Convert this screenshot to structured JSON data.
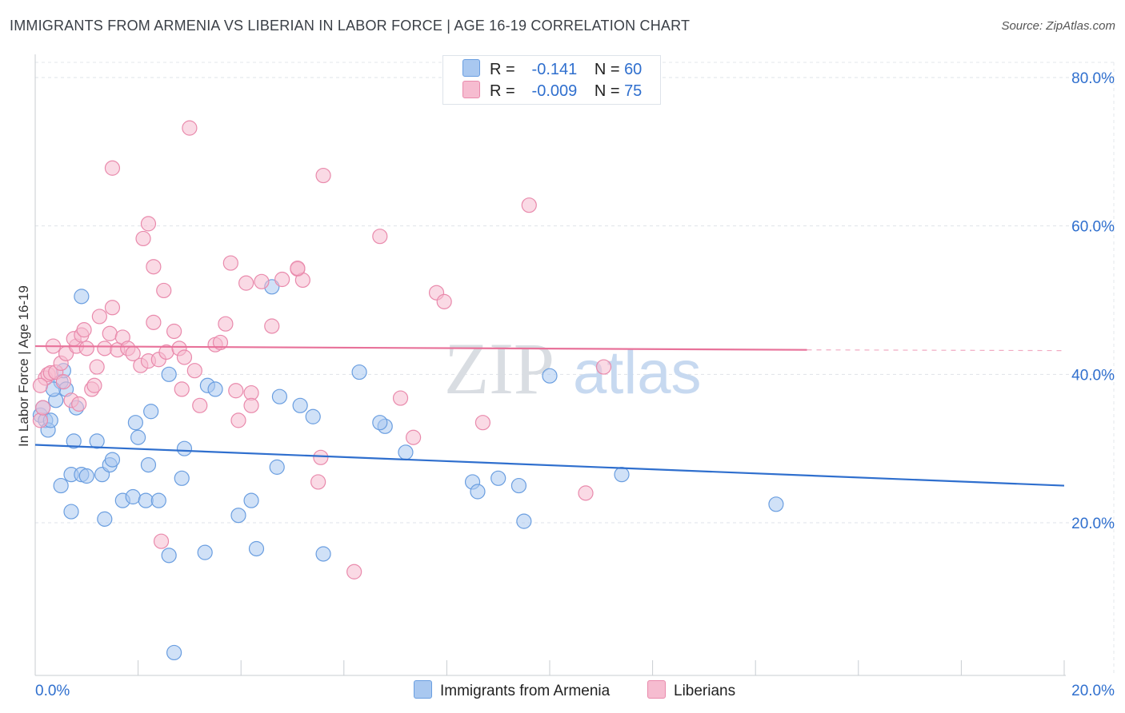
{
  "title": "IMMIGRANTS FROM ARMENIA VS LIBERIAN IN LABOR FORCE | AGE 16-19 CORRELATION CHART",
  "source": "Source: ZipAtlas.com",
  "watermark": {
    "zip": "ZIP",
    "atlas": "atlas"
  },
  "legend": {
    "rows": [
      {
        "r_label": "R =",
        "r_value": "-0.141",
        "n_label": "N =",
        "n_value": "60",
        "color": "#a9c8f0",
        "border": "#6a9ee0"
      },
      {
        "r_label": "R =",
        "r_value": "-0.009",
        "n_label": "N =",
        "n_value": "75",
        "color": "#f6bcd0",
        "border": "#e98aac"
      }
    ]
  },
  "bottom_legend": [
    {
      "label": "Immigrants from Armenia",
      "color": "#a9c8f0",
      "border": "#6a9ee0"
    },
    {
      "label": "Liberians",
      "color": "#f6bcd0",
      "border": "#e98aac"
    }
  ],
  "chart_data": {
    "type": "scatter",
    "title": "IMMIGRANTS FROM ARMENIA VS LIBERIAN IN LABOR FORCE | AGE 16-19 CORRELATION CHART",
    "xlabel": "",
    "ylabel": "In Labor Force | Age 16-19",
    "xlim": [
      0,
      20
    ],
    "ylim": [
      0,
      82
    ],
    "x_tick_labels": [
      "0.0%",
      "20.0%"
    ],
    "y_ticks": [
      20,
      40,
      60,
      80
    ],
    "y_tick_labels": [
      "20.0%",
      "40.0%",
      "60.0%",
      "80.0%"
    ],
    "grid": true,
    "series": [
      {
        "name": "Immigrants from Armenia",
        "color": "#6a9ee0",
        "fill": "#a9c8f0",
        "line_color": "#2f6fce",
        "trend": {
          "x": [
            0,
            20
          ],
          "y": [
            30.5,
            25.0
          ],
          "dashed_from": null
        },
        "points": [
          [
            0.1,
            34.5
          ],
          [
            0.2,
            33.8
          ],
          [
            0.25,
            32.5
          ],
          [
            0.15,
            35.5
          ],
          [
            0.3,
            33.8
          ],
          [
            0.4,
            36.5
          ],
          [
            0.5,
            39.0
          ],
          [
            0.6,
            38.0
          ],
          [
            0.55,
            40.5
          ],
          [
            0.35,
            38.0
          ],
          [
            0.9,
            50.5
          ],
          [
            0.8,
            35.5
          ],
          [
            0.75,
            31.0
          ],
          [
            1.2,
            31.0
          ],
          [
            0.7,
            26.5
          ],
          [
            0.9,
            26.5
          ],
          [
            1.0,
            26.3
          ],
          [
            1.3,
            26.5
          ],
          [
            1.45,
            27.8
          ],
          [
            1.5,
            28.5
          ],
          [
            0.5,
            25.0
          ],
          [
            0.7,
            21.5
          ],
          [
            1.35,
            20.5
          ],
          [
            1.7,
            23.0
          ],
          [
            1.9,
            23.5
          ],
          [
            2.15,
            23.0
          ],
          [
            2.4,
            23.0
          ],
          [
            2.2,
            27.8
          ],
          [
            2.0,
            31.5
          ],
          [
            1.95,
            33.5
          ],
          [
            2.25,
            35.0
          ],
          [
            2.6,
            40.0
          ],
          [
            2.85,
            26.0
          ],
          [
            2.9,
            30.0
          ],
          [
            3.35,
            38.5
          ],
          [
            3.5,
            38.0
          ],
          [
            3.3,
            16.0
          ],
          [
            2.6,
            15.6
          ],
          [
            2.7,
            2.5
          ],
          [
            3.95,
            21.0
          ],
          [
            4.2,
            23.0
          ],
          [
            4.3,
            16.5
          ],
          [
            4.7,
            27.5
          ],
          [
            4.6,
            51.8
          ],
          [
            4.75,
            37.0
          ],
          [
            5.15,
            35.8
          ],
          [
            5.4,
            34.3
          ],
          [
            5.6,
            15.8
          ],
          [
            6.3,
            40.3
          ],
          [
            6.8,
            33.0
          ],
          [
            6.7,
            33.5
          ],
          [
            7.2,
            29.5
          ],
          [
            8.5,
            25.5
          ],
          [
            8.6,
            24.2
          ],
          [
            9.0,
            26.0
          ],
          [
            9.4,
            25.0
          ],
          [
            9.5,
            20.2
          ],
          [
            10.0,
            39.8
          ],
          [
            11.4,
            26.5
          ],
          [
            14.4,
            22.5
          ]
        ]
      },
      {
        "name": "Liberians",
        "color": "#e98aac",
        "fill": "#f6bcd0",
        "line_color": "#e8729a",
        "trend": {
          "x": [
            0,
            15.0
          ],
          "y": [
            43.8,
            43.3
          ],
          "dashed_from": 15.0,
          "dashed_to": 20,
          "dashed_end_y": 43.2
        },
        "points": [
          [
            0.1,
            33.8
          ],
          [
            0.15,
            35.5
          ],
          [
            0.2,
            39.5
          ],
          [
            0.25,
            40.0
          ],
          [
            0.1,
            38.5
          ],
          [
            0.3,
            40.2
          ],
          [
            0.4,
            40.3
          ],
          [
            0.35,
            43.8
          ],
          [
            0.5,
            41.5
          ],
          [
            0.55,
            39.0
          ],
          [
            0.6,
            42.8
          ],
          [
            0.7,
            36.5
          ],
          [
            0.8,
            43.8
          ],
          [
            0.75,
            44.8
          ],
          [
            0.9,
            45.3
          ],
          [
            0.95,
            46.0
          ],
          [
            1.0,
            43.5
          ],
          [
            1.1,
            38.0
          ],
          [
            0.85,
            36.0
          ],
          [
            1.15,
            38.5
          ],
          [
            1.2,
            41.0
          ],
          [
            1.25,
            47.8
          ],
          [
            1.35,
            43.5
          ],
          [
            1.5,
            49.0
          ],
          [
            1.45,
            45.5
          ],
          [
            1.6,
            43.3
          ],
          [
            1.7,
            45.0
          ],
          [
            1.8,
            43.5
          ],
          [
            1.9,
            42.8
          ],
          [
            2.05,
            41.2
          ],
          [
            2.2,
            41.8
          ],
          [
            2.3,
            47.0
          ],
          [
            2.3,
            54.5
          ],
          [
            2.1,
            58.3
          ],
          [
            2.2,
            60.3
          ],
          [
            1.5,
            67.8
          ],
          [
            2.4,
            42.0
          ],
          [
            2.5,
            51.3
          ],
          [
            2.55,
            43.0
          ],
          [
            2.7,
            45.8
          ],
          [
            2.8,
            43.5
          ],
          [
            2.9,
            42.3
          ],
          [
            2.85,
            38.0
          ],
          [
            3.0,
            73.2
          ],
          [
            3.2,
            35.8
          ],
          [
            3.5,
            44.0
          ],
          [
            3.6,
            44.3
          ],
          [
            3.7,
            46.8
          ],
          [
            3.8,
            55.0
          ],
          [
            3.9,
            37.8
          ],
          [
            3.95,
            33.8
          ],
          [
            4.1,
            52.3
          ],
          [
            4.2,
            37.5
          ],
          [
            4.2,
            35.8
          ],
          [
            4.4,
            52.5
          ],
          [
            4.6,
            46.5
          ],
          [
            4.8,
            52.8
          ],
          [
            5.1,
            54.2
          ],
          [
            5.2,
            52.7
          ],
          [
            5.1,
            54.3
          ],
          [
            5.55,
            28.8
          ],
          [
            5.5,
            25.5
          ],
          [
            5.6,
            66.8
          ],
          [
            6.2,
            13.4
          ],
          [
            6.7,
            58.6
          ],
          [
            7.1,
            36.8
          ],
          [
            7.35,
            31.5
          ],
          [
            7.8,
            51.0
          ],
          [
            7.95,
            49.8
          ],
          [
            8.7,
            33.5
          ],
          [
            9.6,
            62.8
          ],
          [
            10.7,
            24.0
          ],
          [
            11.05,
            41.0
          ],
          [
            2.45,
            17.5
          ],
          [
            3.1,
            40.5
          ]
        ]
      }
    ]
  }
}
